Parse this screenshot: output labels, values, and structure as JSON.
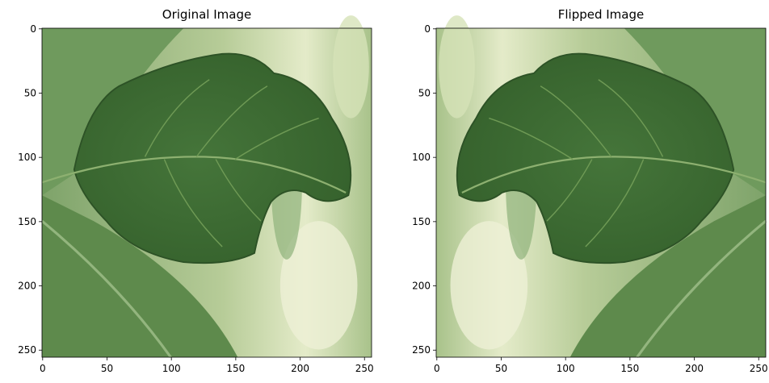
{
  "chart_data": [
    {
      "type": "image",
      "title": "Original Image",
      "flipped": false,
      "xlim": [
        -0.5,
        255.5
      ],
      "ylim": [
        255.5,
        -0.5
      ],
      "xticks": [
        0,
        50,
        100,
        150,
        200,
        250
      ],
      "yticks": [
        0,
        50,
        100,
        150,
        200,
        250
      ]
    },
    {
      "type": "image",
      "title": "Flipped Image",
      "flipped": true,
      "xlim": [
        -0.5,
        255.5
      ],
      "ylim": [
        255.5,
        -0.5
      ],
      "xticks": [
        0,
        50,
        100,
        150,
        200,
        250
      ],
      "yticks": [
        0,
        50,
        100,
        150,
        200,
        250
      ]
    }
  ]
}
